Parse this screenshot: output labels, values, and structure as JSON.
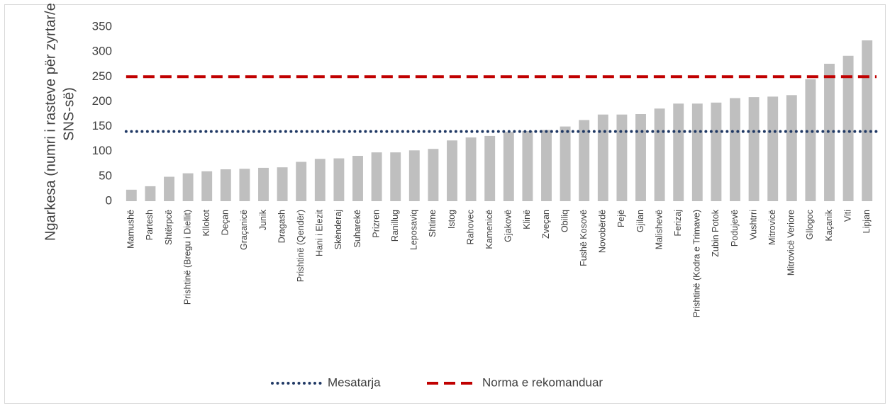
{
  "chart_data": {
    "type": "bar",
    "ylabel": [
      "Ngarkesa (numri i rasteve për zyrtar/e të",
      "SNS-së)"
    ],
    "categories": [
      "Mamushë",
      "Partesh",
      "Shtërpcë",
      "Prishtinë (Bregu i Diellit)",
      "Kllokot",
      "Deçan",
      "Graçanicë",
      "Junik",
      "Dragash",
      "Prishtinë (Qendër)",
      "Hani i Elezit",
      "Skënderaj",
      "Suharekë",
      "Prizren",
      "Ranillug",
      "Leposaviq",
      "Shtime",
      "Istog",
      "Rahovec",
      "Kamenicë",
      "Gjakovë",
      "Klinë",
      "Zveçan",
      "Obiliq",
      "Fushë Kosovë",
      "Novobërdë",
      "Pejë",
      "Gjilan",
      "Malishevë",
      "Ferizaj",
      "Prishtinë (Kodra e Trimave)",
      "Zubin Potok",
      "Podujevë",
      "Vushtrri",
      "Mitrovicë",
      "Mitrovicë Veriore",
      "Gllogoc",
      "Kaçanik",
      "Viti",
      "Lipjan"
    ],
    "values": [
      23,
      30,
      49,
      56,
      60,
      64,
      65,
      67,
      68,
      79,
      85,
      86,
      91,
      98,
      98,
      102,
      105,
      122,
      128,
      131,
      139,
      141,
      143,
      150,
      163,
      174,
      174,
      175,
      186,
      196,
      196,
      198,
      207,
      209,
      210,
      213,
      245,
      276,
      292,
      323
    ],
    "color": "#bfbfbf",
    "reference_lines": [
      {
        "name": "Mesatarja",
        "value": 140,
        "color": "#1f3864",
        "style": "dotted"
      },
      {
        "name": "Norma e rekomanduar",
        "value": 250,
        "color": "#c00000",
        "style": "dashed"
      }
    ],
    "ylim": [
      0,
      350
    ],
    "yticks": [
      0,
      50,
      100,
      150,
      200,
      250,
      300,
      350
    ],
    "grid": false,
    "legend": "bottom"
  }
}
